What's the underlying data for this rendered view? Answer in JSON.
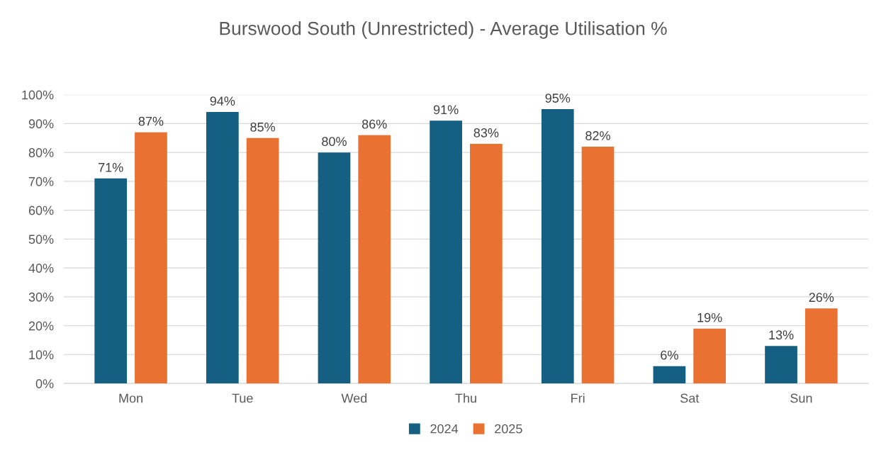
{
  "chart_data": {
    "type": "bar",
    "title": "Burswood South (Unrestricted) - Average Utilisation %",
    "categories": [
      "Mon",
      "Tue",
      "Wed",
      "Thu",
      "Fri",
      "Sat",
      "Sun"
    ],
    "series": [
      {
        "name": "2024",
        "color": "#156082",
        "values": [
          71,
          94,
          80,
          91,
          95,
          6,
          13
        ],
        "value_labels": [
          "71%",
          "94%",
          "80%",
          "91%",
          "95%",
          "6%",
          "13%"
        ]
      },
      {
        "name": "2025",
        "color": "#e97132",
        "values": [
          87,
          85,
          86,
          83,
          82,
          19,
          26
        ],
        "value_labels": [
          "87%",
          "85%",
          "86%",
          "83%",
          "82%",
          "19%",
          "26%"
        ]
      }
    ],
    "ylim": [
      0,
      100
    ],
    "yticks": [
      {
        "value": 0,
        "label": "0%"
      },
      {
        "value": 10,
        "label": "10%"
      },
      {
        "value": 20,
        "label": "20%"
      },
      {
        "value": 30,
        "label": "30%"
      },
      {
        "value": 40,
        "label": "40%"
      },
      {
        "value": 50,
        "label": "50%"
      },
      {
        "value": 60,
        "label": "60%"
      },
      {
        "value": 70,
        "label": "70%"
      },
      {
        "value": 80,
        "label": "80%"
      },
      {
        "value": 90,
        "label": "90%"
      },
      {
        "value": 100,
        "label": "100%"
      }
    ],
    "grid": "y",
    "legend": "bottom"
  }
}
